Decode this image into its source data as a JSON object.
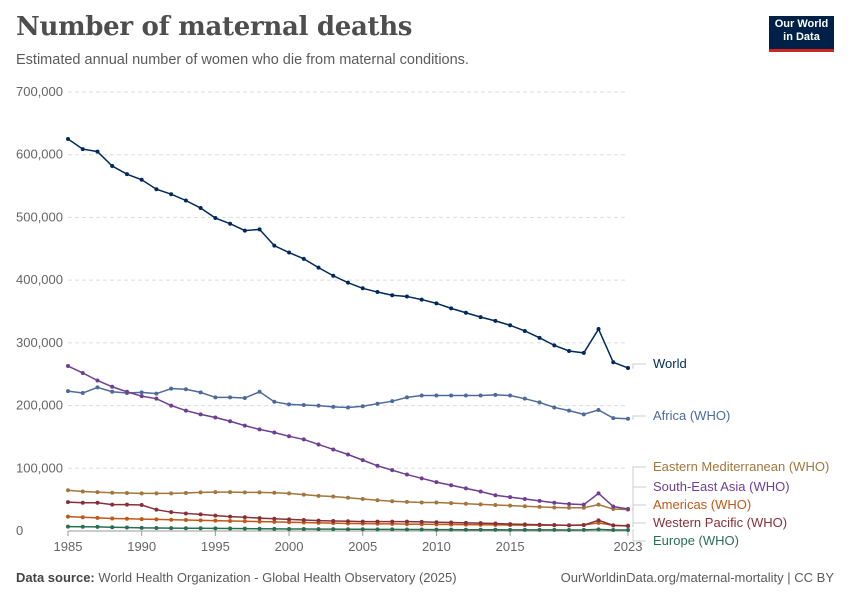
{
  "header": {
    "title": "Number of maternal deaths",
    "subtitle": "Estimated annual number of women who die from maternal conditions.",
    "logo_line1": "Our World",
    "logo_line2": "in Data"
  },
  "footer": {
    "source_label": "Data source:",
    "source_text": "World Health Organization - Global Health Observatory (2025)",
    "url": "OurWorldinData.org/maternal-mortality | CC BY"
  },
  "chart_data": {
    "type": "line",
    "title": "Number of maternal deaths",
    "xlabel": "",
    "ylabel": "",
    "x": [
      1985,
      1986,
      1987,
      1988,
      1989,
      1990,
      1991,
      1992,
      1993,
      1994,
      1995,
      1996,
      1997,
      1998,
      1999,
      2000,
      2001,
      2002,
      2003,
      2004,
      2005,
      2006,
      2007,
      2008,
      2009,
      2010,
      2011,
      2012,
      2013,
      2014,
      2015,
      2016,
      2017,
      2018,
      2019,
      2020,
      2021,
      2022,
      2023
    ],
    "x_ticks": [
      "1985",
      "1990",
      "1995",
      "2000",
      "2005",
      "2010",
      "2015",
      "2023"
    ],
    "y_ticks": [
      "0",
      "100,000",
      "200,000",
      "300,000",
      "400,000",
      "500,000",
      "600,000",
      "700,000"
    ],
    "ylim": [
      0,
      700000
    ],
    "grid": true,
    "legend": "right",
    "series": [
      {
        "name": "World",
        "color": "#00295b",
        "values": [
          625000,
          609000,
          605000,
          582000,
          569000,
          560000,
          545000,
          537000,
          527000,
          515000,
          499000,
          490000,
          479000,
          481000,
          455000,
          444000,
          434000,
          420000,
          407000,
          396000,
          387000,
          381000,
          376000,
          374000,
          369000,
          363000,
          355000,
          348000,
          341000,
          335000,
          328000,
          319000,
          308000,
          296000,
          287000,
          284000,
          322000,
          269000,
          260000
        ]
      },
      {
        "name": "Africa (WHO)",
        "color": "#4c6a9c",
        "values": [
          223000,
          220000,
          229000,
          222000,
          220000,
          221000,
          219000,
          227000,
          226000,
          221000,
          213000,
          213000,
          212000,
          222000,
          206000,
          202000,
          201000,
          200000,
          198000,
          197000,
          199000,
          203000,
          207000,
          213000,
          216000,
          216000,
          216000,
          216000,
          216000,
          217000,
          216000,
          211000,
          205000,
          197000,
          192000,
          186000,
          193000,
          180000,
          179000
        ]
      },
      {
        "name": "Eastern Mediterranean (WHO)",
        "color": "#a2763c",
        "values": [
          65000,
          63000,
          62000,
          61000,
          60500,
          60000,
          60000,
          60000,
          60500,
          61500,
          62000,
          62000,
          61500,
          61500,
          61000,
          60000,
          58000,
          56000,
          55000,
          53000,
          51000,
          49000,
          47500,
          46500,
          45500,
          45500,
          44500,
          43500,
          42500,
          41500,
          40500,
          39500,
          38500,
          37500,
          37000,
          37000,
          42000,
          35000,
          34000
        ]
      },
      {
        "name": "South-East Asia (WHO)",
        "color": "#6d3e91",
        "values": [
          263000,
          252000,
          240000,
          230000,
          222000,
          215000,
          211000,
          200000,
          192000,
          186000,
          181000,
          175000,
          168000,
          162000,
          157000,
          151000,
          146000,
          138000,
          130000,
          122000,
          113000,
          104000,
          97000,
          90000,
          84000,
          78000,
          73000,
          68000,
          63000,
          57000,
          54000,
          51000,
          48000,
          45000,
          43000,
          42000,
          60000,
          39000,
          35000
        ]
      },
      {
        "name": "Americas (WHO)",
        "color": "#c05917",
        "values": [
          23000,
          22000,
          21000,
          20000,
          19500,
          19000,
          18500,
          18000,
          17500,
          17000,
          16500,
          16000,
          15500,
          15000,
          14500,
          14000,
          13500,
          13000,
          12500,
          12000,
          11800,
          11500,
          11300,
          11000,
          10800,
          10600,
          10400,
          10200,
          10000,
          9800,
          9600,
          9400,
          9300,
          9200,
          9100,
          9500,
          13000,
          9000,
          8500
        ]
      },
      {
        "name": "Western Pacific (WHO)",
        "color": "#883039",
        "values": [
          46000,
          45000,
          45000,
          42000,
          42000,
          41500,
          34000,
          30000,
          28000,
          26500,
          24500,
          23000,
          22000,
          20500,
          19500,
          18500,
          17500,
          16500,
          16000,
          15500,
          15000,
          15000,
          15000,
          15000,
          14500,
          14000,
          13500,
          13000,
          12500,
          12000,
          11000,
          10500,
          10000,
          9500,
          9000,
          9500,
          17000,
          9000,
          8000
        ]
      },
      {
        "name": "Europe (WHO)",
        "color": "#286f51",
        "values": [
          7000,
          6800,
          6500,
          6000,
          5500,
          5000,
          4800,
          4600,
          4400,
          4300,
          4200,
          4000,
          3800,
          3600,
          3400,
          3200,
          3100,
          3000,
          2900,
          2800,
          2700,
          2600,
          2500,
          2400,
          2300,
          2200,
          2100,
          2000,
          1950,
          1900,
          1850,
          1800,
          1750,
          1700,
          1650,
          1700,
          2500,
          1600,
          1500
        ]
      }
    ]
  }
}
